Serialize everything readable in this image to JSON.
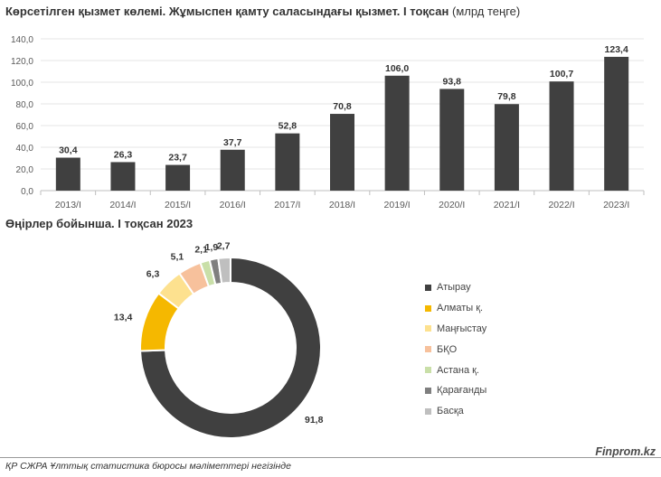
{
  "titles": {
    "bar_title_bold": "Көрсетілген қызмет көлемі. Жұмыспен қамту саласындағы қызмет. I тоқсан",
    "bar_title_unit": "(млрд теңге)",
    "donut_title": "Өңірлер бойынша. I тоқсан 2023"
  },
  "footer": {
    "source": "ҚР СЖРА Ұлттық статистика бюросы мәліметтері негізінде",
    "brand": "Finprom.kz"
  },
  "colors": {
    "bar": "#404040",
    "axis": "#bfbfbf",
    "grid": "#e6e6e6"
  },
  "chart_data": [
    {
      "type": "bar",
      "title": "Көрсетілген қызмет көлемі. Жұмыспен қамту саласындағы қызмет. I тоқсан (млрд теңге)",
      "categories": [
        "2013/I",
        "2014/I",
        "2015/I",
        "2016/I",
        "2017/I",
        "2018/I",
        "2019/I",
        "2020/I",
        "2021/I",
        "2022/I",
        "2023/I"
      ],
      "values": [
        30.4,
        26.3,
        23.7,
        37.7,
        52.8,
        70.8,
        106.0,
        93.8,
        79.8,
        100.7,
        123.4
      ],
      "value_labels": [
        "30,4",
        "26,3",
        "23,7",
        "37,7",
        "52,8",
        "70,8",
        "106,0",
        "93,8",
        "79,8",
        "100,7",
        "123,4"
      ],
      "y_ticks": [
        0,
        20,
        40,
        60,
        80,
        100,
        120,
        140
      ],
      "y_tick_labels": [
        "0,0",
        "20,0",
        "40,0",
        "60,0",
        "80,0",
        "100,0",
        "120,0",
        "140,0"
      ],
      "ylim": [
        0,
        140
      ],
      "grid": true,
      "xlabel": "",
      "ylabel": ""
    },
    {
      "type": "pie",
      "title": "Өңірлер бойынша. I тоқсан 2023",
      "labels": [
        "Атырау",
        "Алматы қ.",
        "Маңғыстау",
        "БҚО",
        "Астана қ.",
        "Қарағанды",
        "Басқа"
      ],
      "values": [
        91.8,
        13.4,
        6.3,
        5.1,
        2.1,
        1.9,
        2.7
      ],
      "value_labels": [
        "91,8",
        "13,4",
        "6,3",
        "5,1",
        "2,1",
        "1,9",
        "2,7"
      ],
      "colors": [
        "#404040",
        "#f5b800",
        "#fde18f",
        "#f7c19c",
        "#c9dfa8",
        "#7f7f7f",
        "#bfbfbf"
      ],
      "legend": "right",
      "donut": true
    }
  ]
}
